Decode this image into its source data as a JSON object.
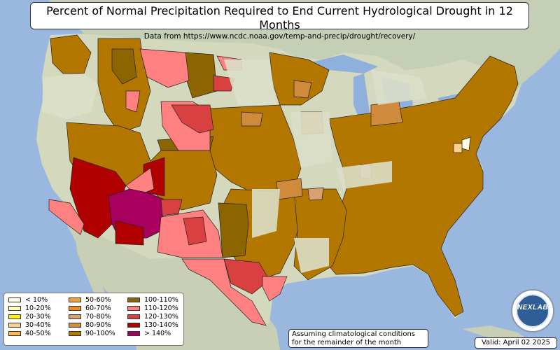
{
  "title": "Percent of Normal Precipitation Required to End Current Hydrological Drought in 12 Months",
  "subtitle": "Data from https://www.ncdc.noaa.gov/temp-and-precip/drought/recovery/",
  "legend": [
    {
      "label": "< 10%",
      "color": "#fffde6"
    },
    {
      "label": "10-20%",
      "color": "#ffffb0"
    },
    {
      "label": "20-30%",
      "color": "#ffee00"
    },
    {
      "label": "30-40%",
      "color": "#ffd08a"
    },
    {
      "label": "40-50%",
      "color": "#ffb54d"
    },
    {
      "label": "50-60%",
      "color": "#f5a030"
    },
    {
      "label": "60-70%",
      "color": "#f08c18"
    },
    {
      "label": "70-80%",
      "color": "#d9a070"
    },
    {
      "label": "80-90%",
      "color": "#cf8a3c"
    },
    {
      "label": "90-100%",
      "color": "#b37700"
    },
    {
      "label": "100-110%",
      "color": "#8c6400"
    },
    {
      "label": "110-120%",
      "color": "#ff8080"
    },
    {
      "label": "120-130%",
      "color": "#d94040"
    },
    {
      "label": "130-140%",
      "color": "#b00000"
    },
    {
      "label": "> 140%",
      "color": "#a8005f"
    }
  ],
  "note": {
    "line1": "Assuming climatological conditions",
    "line2": "for the remainder of the month"
  },
  "valid": "Valid: April 02 2025",
  "logo_text": "NEXLAB",
  "colors": {
    "ocean": "#9ab7e0",
    "land": "#d4d9bd",
    "canada": "#c5cfb5",
    "lakes": "#8fb0dc",
    "p90": "#b37700",
    "p100": "#8c6400",
    "p110": "#ff8080",
    "p120": "#d94040",
    "p130": "#b00000",
    "p140": "#a8005f",
    "p80": "#cf8a3c",
    "p70": "#d9a070",
    "p30": "#ffd08a",
    "p10": "#fffde6"
  }
}
